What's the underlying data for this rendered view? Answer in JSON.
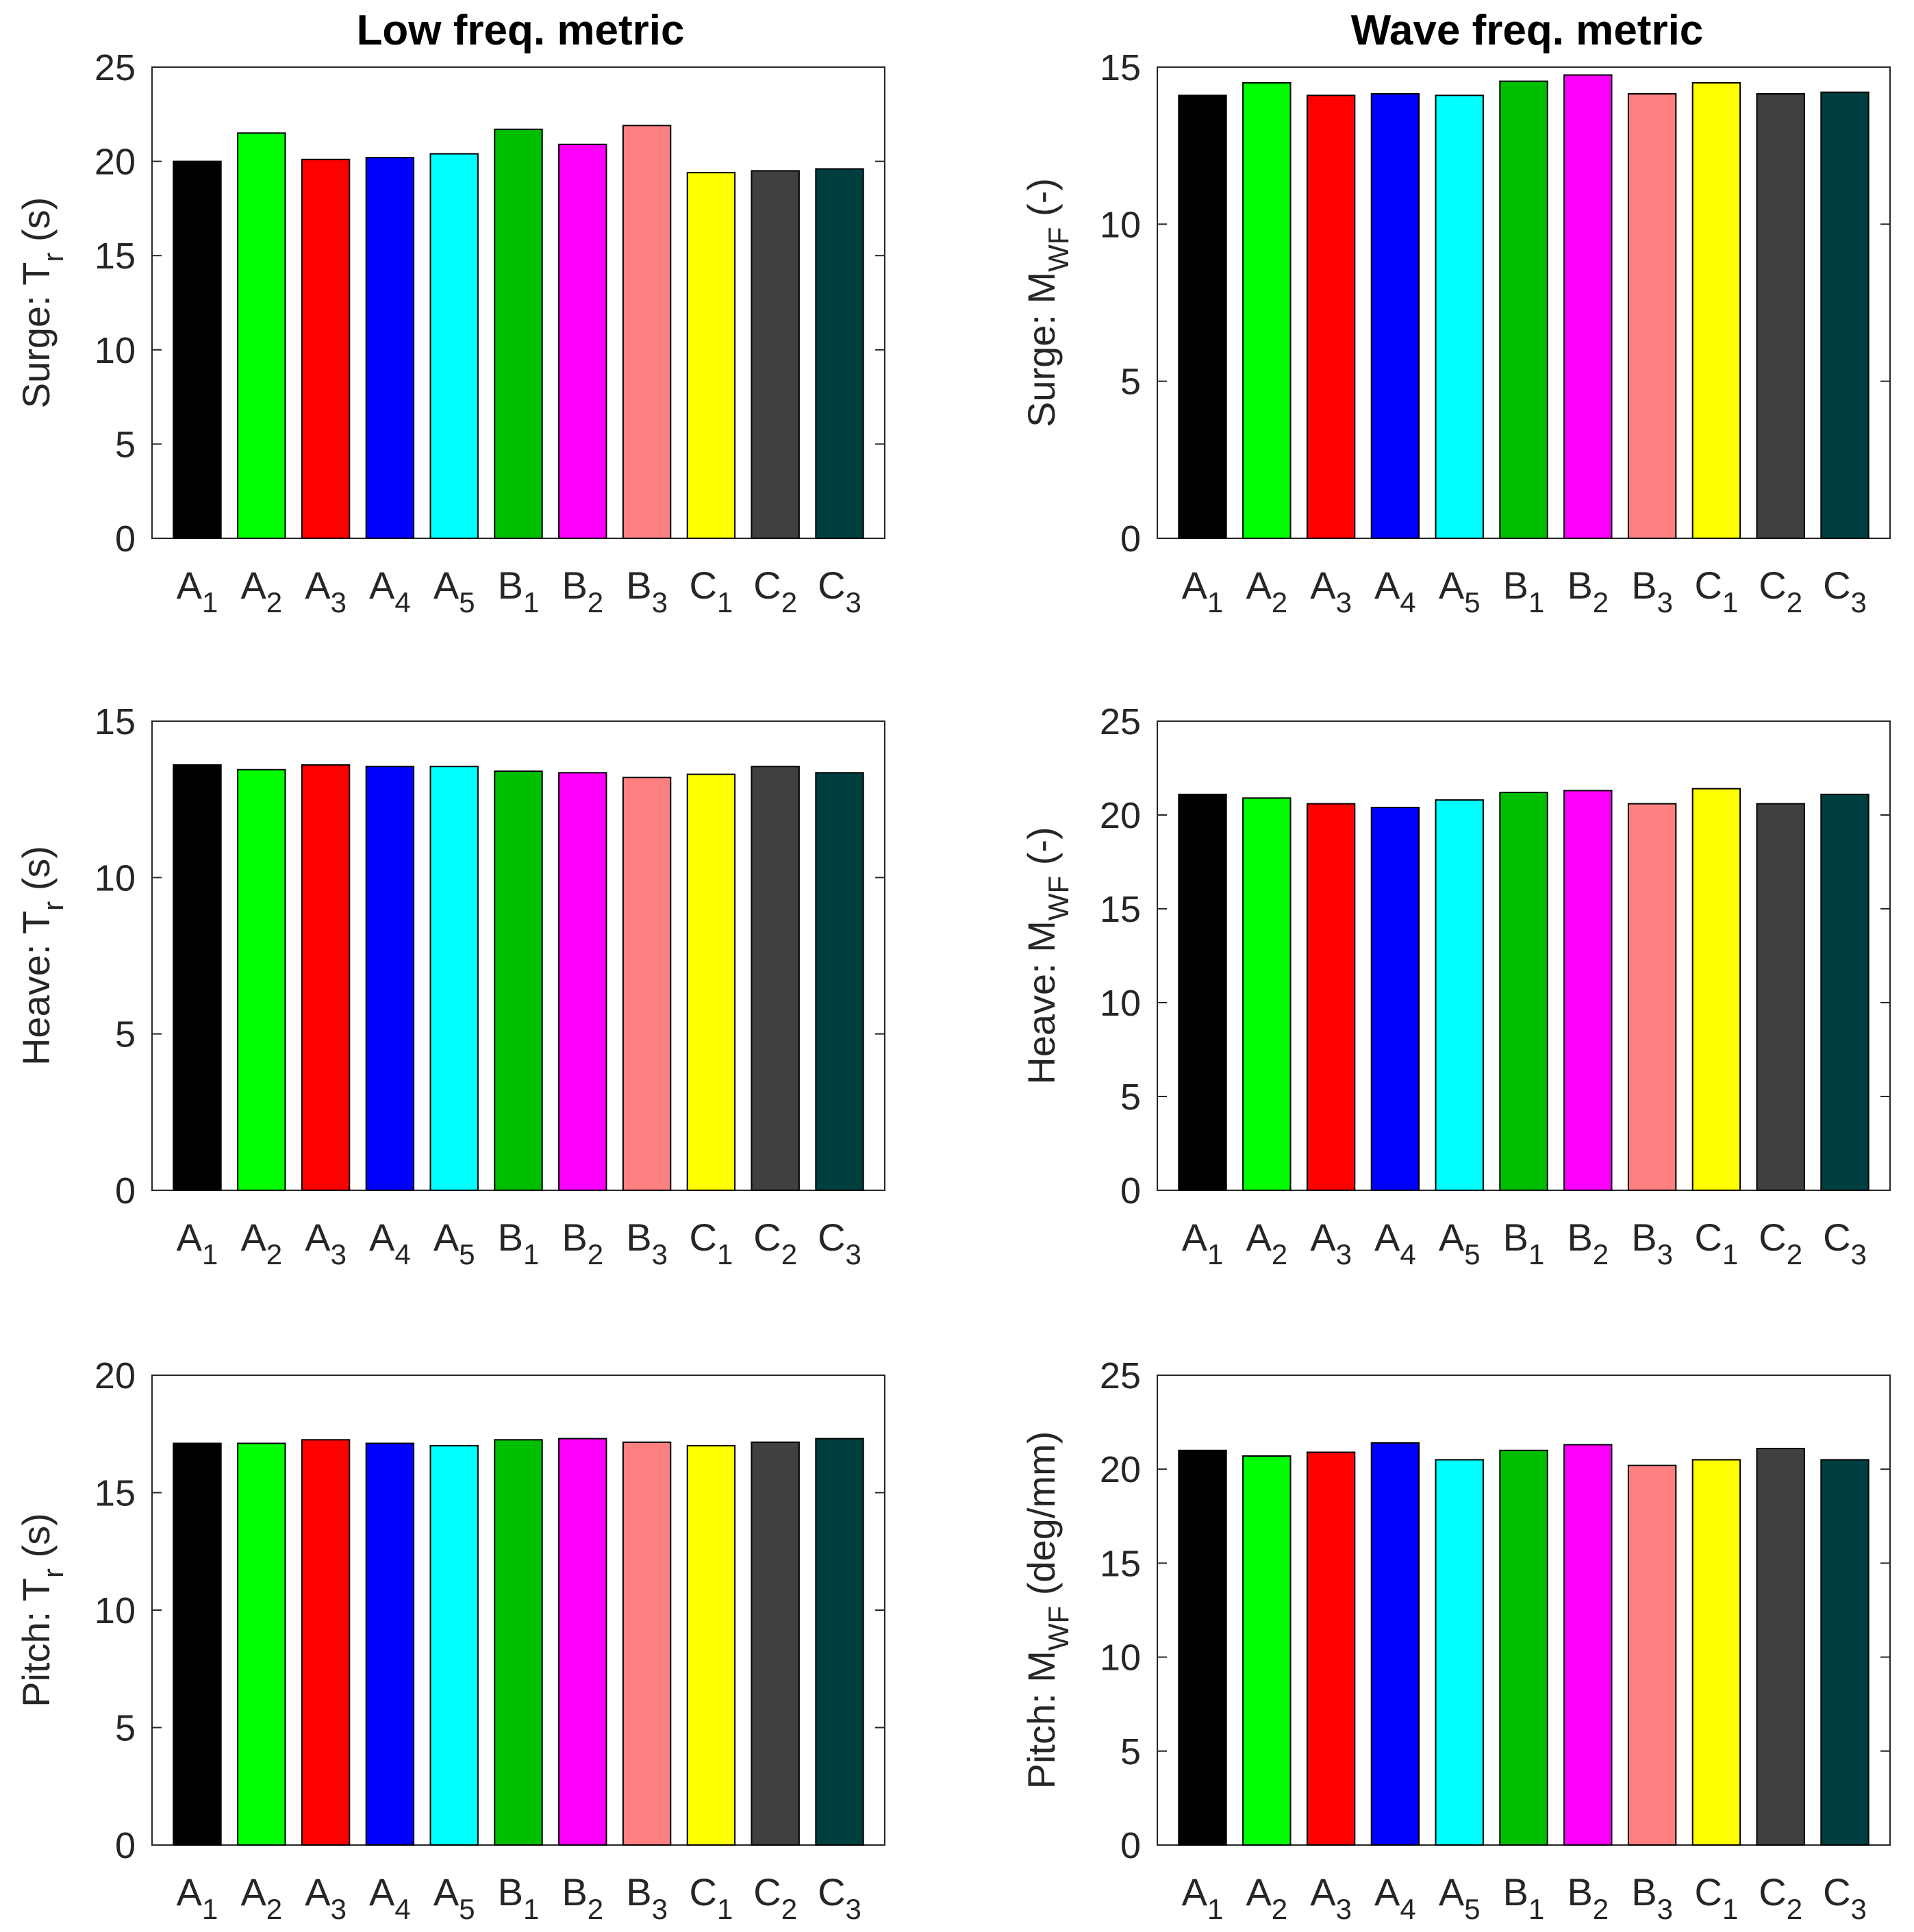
{
  "column_titles": [
    "Low freq. metric",
    "Wave freq. metric"
  ],
  "category_labels": [
    {
      "base": "A",
      "sub": "1"
    },
    {
      "base": "A",
      "sub": "2"
    },
    {
      "base": "A",
      "sub": "3"
    },
    {
      "base": "A",
      "sub": "4"
    },
    {
      "base": "A",
      "sub": "5"
    },
    {
      "base": "B",
      "sub": "1"
    },
    {
      "base": "B",
      "sub": "2"
    },
    {
      "base": "B",
      "sub": "3"
    },
    {
      "base": "C",
      "sub": "1"
    },
    {
      "base": "C",
      "sub": "2"
    },
    {
      "base": "C",
      "sub": "3"
    }
  ],
  "bar_colors": [
    "#000000",
    "#00ff00",
    "#ff0000",
    "#0000ff",
    "#00ffff",
    "#00bf00",
    "#ff00ff",
    "#ff8080",
    "#ffff00",
    "#404040",
    "#003f3f"
  ],
  "chart_data": [
    {
      "type": "bar",
      "title": "Low freq. metric",
      "ylabel": {
        "prefix": "Surge: T",
        "sub": "r",
        "suffix": " (s)"
      },
      "categories": [
        "A1",
        "A2",
        "A3",
        "A4",
        "A5",
        "B1",
        "B2",
        "B3",
        "C1",
        "C2",
        "C3"
      ],
      "values": [
        20.0,
        21.5,
        20.1,
        20.2,
        20.4,
        21.7,
        20.9,
        21.9,
        19.4,
        19.5,
        19.6
      ],
      "ylim": [
        0,
        25
      ],
      "yticks": [
        0,
        5,
        10,
        15,
        20,
        25
      ]
    },
    {
      "type": "bar",
      "title": "Wave freq. metric",
      "ylabel": {
        "prefix": "Surge: M",
        "sub": "WF",
        "suffix": " (-)"
      },
      "categories": [
        "A1",
        "A2",
        "A3",
        "A4",
        "A5",
        "B1",
        "B2",
        "B3",
        "C1",
        "C2",
        "C3"
      ],
      "values": [
        14.1,
        14.5,
        14.1,
        14.15,
        14.1,
        14.55,
        14.75,
        14.15,
        14.5,
        14.15,
        14.2
      ],
      "ylim": [
        0,
        15
      ],
      "yticks": [
        0,
        5,
        10,
        15
      ]
    },
    {
      "type": "bar",
      "title": "",
      "ylabel": {
        "prefix": "Heave: T",
        "sub": "r",
        "suffix": " (s)"
      },
      "categories": [
        "A1",
        "A2",
        "A3",
        "A4",
        "A5",
        "B1",
        "B2",
        "B3",
        "C1",
        "C2",
        "C3"
      ],
      "values": [
        13.6,
        13.45,
        13.6,
        13.55,
        13.55,
        13.4,
        13.35,
        13.2,
        13.3,
        13.55,
        13.35
      ],
      "ylim": [
        0,
        15
      ],
      "yticks": [
        0,
        5,
        10,
        15
      ]
    },
    {
      "type": "bar",
      "title": "",
      "ylabel": {
        "prefix": "Heave: M",
        "sub": "WF",
        "suffix": " (-)"
      },
      "categories": [
        "A1",
        "A2",
        "A3",
        "A4",
        "A5",
        "B1",
        "B2",
        "B3",
        "C1",
        "C2",
        "C3"
      ],
      "values": [
        21.1,
        20.9,
        20.6,
        20.4,
        20.8,
        21.2,
        21.3,
        20.6,
        21.4,
        20.6,
        21.1
      ],
      "ylim": [
        0,
        25
      ],
      "yticks": [
        0,
        5,
        10,
        15,
        20,
        25
      ]
    },
    {
      "type": "bar",
      "title": "",
      "ylabel": {
        "prefix": "Pitch: T",
        "sub": "r",
        "suffix": " (s)"
      },
      "categories": [
        "A1",
        "A2",
        "A3",
        "A4",
        "A5",
        "B1",
        "B2",
        "B3",
        "C1",
        "C2",
        "C3"
      ],
      "values": [
        17.1,
        17.1,
        17.25,
        17.1,
        17.0,
        17.25,
        17.3,
        17.15,
        17.0,
        17.15,
        17.3
      ],
      "ylim": [
        0,
        20
      ],
      "yticks": [
        0,
        5,
        10,
        15,
        20
      ]
    },
    {
      "type": "bar",
      "title": "",
      "ylabel": {
        "prefix": "Pitch: M",
        "sub": "WF",
        "suffix": " (deg/mm)"
      },
      "categories": [
        "A1",
        "A2",
        "A3",
        "A4",
        "A5",
        "B1",
        "B2",
        "B3",
        "C1",
        "C2",
        "C3"
      ],
      "values": [
        21.0,
        20.7,
        20.9,
        21.4,
        20.5,
        21.0,
        21.3,
        20.2,
        20.5,
        21.1,
        20.5
      ],
      "ylim": [
        0,
        25
      ],
      "yticks": [
        0,
        5,
        10,
        15,
        20,
        25
      ]
    }
  ]
}
